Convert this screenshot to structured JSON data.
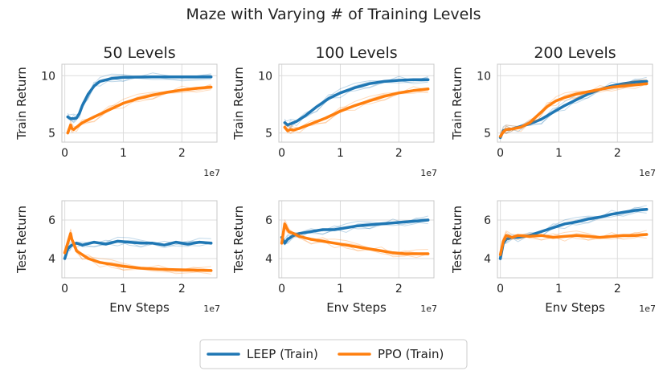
{
  "colors": {
    "leep": "#1f77b4",
    "ppo": "#ff7f0e",
    "grid": "#dcdcdc",
    "frame": "#c8c8c8"
  },
  "legend": {
    "leep": "LEEP (Train)",
    "ppo": "PPO (Train)"
  },
  "chart_data": {
    "type": "line",
    "title": "Maze with Varying # of Training Levels",
    "xlabel": "Env Steps",
    "x_exponent": "1e7",
    "xlim": [
      -0.05,
      2.6
    ],
    "xticks": [
      0,
      1,
      2
    ],
    "x_tick_labels": [
      "0",
      "1",
      "2"
    ],
    "series_names": [
      "LEEP (Train)",
      "PPO (Train)"
    ],
    "panels": [
      {
        "title": "50 Levels",
        "ylabel": "Train Return",
        "ylim": [
          4.2,
          11.0
        ],
        "yticks": [
          5,
          10
        ],
        "y_tick_labels": [
          "5",
          "10"
        ],
        "series": [
          {
            "name": "LEEP (Train)",
            "x": [
              0.05,
              0.1,
              0.15,
              0.2,
              0.25,
              0.3,
              0.4,
              0.5,
              0.6,
              0.8,
              1.0,
              1.2,
              1.5,
              2.0,
              2.5
            ],
            "y": [
              6.4,
              6.25,
              6.25,
              6.3,
              6.7,
              7.4,
              8.4,
              9.1,
              9.5,
              9.75,
              9.85,
              9.88,
              9.9,
              9.9,
              9.9
            ]
          },
          {
            "name": "PPO (Train)",
            "x": [
              0.05,
              0.1,
              0.12,
              0.15,
              0.2,
              0.3,
              0.5,
              0.75,
              1.0,
              1.25,
              1.5,
              1.75,
              2.0,
              2.25,
              2.5
            ],
            "y": [
              5.0,
              5.7,
              5.4,
              5.3,
              5.5,
              5.9,
              6.4,
              7.0,
              7.6,
              8.0,
              8.3,
              8.55,
              8.75,
              8.9,
              9.0
            ]
          }
        ]
      },
      {
        "title": "100 Levels",
        "ylabel": "Train Return",
        "ylim": [
          4.2,
          11.0
        ],
        "yticks": [
          5,
          10
        ],
        "y_tick_labels": [
          "5",
          "10"
        ],
        "series": [
          {
            "name": "LEEP (Train)",
            "x": [
              0.05,
              0.1,
              0.15,
              0.2,
              0.25,
              0.4,
              0.6,
              0.8,
              1.0,
              1.25,
              1.5,
              1.75,
              2.0,
              2.25,
              2.5
            ],
            "y": [
              5.9,
              5.7,
              5.8,
              5.9,
              6.0,
              6.5,
              7.3,
              8.0,
              8.5,
              8.95,
              9.3,
              9.5,
              9.6,
              9.65,
              9.65
            ]
          },
          {
            "name": "PPO (Train)",
            "x": [
              0.05,
              0.1,
              0.15,
              0.2,
              0.3,
              0.5,
              0.75,
              1.0,
              1.25,
              1.5,
              1.75,
              2.0,
              2.25,
              2.5
            ],
            "y": [
              5.5,
              5.2,
              5.3,
              5.25,
              5.4,
              5.8,
              6.3,
              6.9,
              7.4,
              7.8,
              8.2,
              8.5,
              8.7,
              8.85
            ]
          }
        ]
      },
      {
        "title": "200 Levels",
        "ylabel": "Train Return",
        "ylim": [
          4.2,
          11.0
        ],
        "yticks": [
          5,
          10
        ],
        "y_tick_labels": [
          "5",
          "10"
        ],
        "series": [
          {
            "name": "LEEP (Train)",
            "x": [
              0.0,
              0.05,
              0.1,
              0.2,
              0.3,
              0.5,
              0.7,
              0.9,
              1.1,
              1.3,
              1.5,
              1.7,
              1.9,
              2.1,
              2.3,
              2.5
            ],
            "y": [
              4.6,
              5.2,
              5.3,
              5.35,
              5.5,
              5.8,
              6.2,
              6.8,
              7.4,
              7.9,
              8.4,
              8.8,
              9.1,
              9.3,
              9.45,
              9.5
            ]
          },
          {
            "name": "PPO (Train)",
            "x": [
              0.0,
              0.05,
              0.1,
              0.2,
              0.35,
              0.5,
              0.65,
              0.8,
              0.95,
              1.1,
              1.3,
              1.5,
              1.7,
              1.9,
              2.1,
              2.3,
              2.5
            ],
            "y": [
              4.7,
              5.1,
              5.3,
              5.35,
              5.5,
              5.9,
              6.6,
              7.3,
              7.8,
              8.1,
              8.4,
              8.6,
              8.8,
              9.0,
              9.1,
              9.2,
              9.3
            ]
          }
        ]
      },
      {
        "title": "",
        "ylabel": "Test Return",
        "ylim": [
          3.0,
          7.0
        ],
        "yticks": [
          4,
          6
        ],
        "y_tick_labels": [
          "4",
          "6"
        ],
        "series": [
          {
            "name": "LEEP (Train)",
            "x": [
              0.0,
              0.05,
              0.08,
              0.12,
              0.2,
              0.3,
              0.5,
              0.7,
              0.9,
              1.1,
              1.3,
              1.5,
              1.7,
              1.9,
              2.1,
              2.3,
              2.5
            ],
            "y": [
              4.0,
              4.5,
              4.6,
              4.7,
              4.8,
              4.7,
              4.85,
              4.75,
              4.9,
              4.85,
              4.8,
              4.8,
              4.7,
              4.85,
              4.75,
              4.85,
              4.8
            ]
          },
          {
            "name": "PPO (Train)",
            "x": [
              0.0,
              0.05,
              0.1,
              0.12,
              0.15,
              0.2,
              0.3,
              0.4,
              0.6,
              0.8,
              1.0,
              1.3,
              1.6,
              1.9,
              2.2,
              2.5
            ],
            "y": [
              4.3,
              4.8,
              5.3,
              5.0,
              4.8,
              4.4,
              4.2,
              4.0,
              3.8,
              3.7,
              3.6,
              3.5,
              3.45,
              3.42,
              3.4,
              3.38
            ]
          }
        ]
      },
      {
        "title": "",
        "ylabel": "Test Return",
        "ylim": [
          3.0,
          7.0
        ],
        "yticks": [
          4,
          6
        ],
        "y_tick_labels": [
          "4",
          "6"
        ],
        "series": [
          {
            "name": "LEEP (Train)",
            "x": [
              0.0,
              0.05,
              0.1,
              0.2,
              0.3,
              0.5,
              0.7,
              0.9,
              1.1,
              1.3,
              1.5,
              1.7,
              1.9,
              2.1,
              2.3,
              2.5
            ],
            "y": [
              5.1,
              4.8,
              5.0,
              5.2,
              5.3,
              5.4,
              5.5,
              5.5,
              5.6,
              5.7,
              5.75,
              5.8,
              5.85,
              5.9,
              5.95,
              6.0
            ]
          },
          {
            "name": "PPO (Train)",
            "x": [
              0.0,
              0.05,
              0.08,
              0.12,
              0.2,
              0.3,
              0.5,
              0.7,
              0.9,
              1.1,
              1.3,
              1.5,
              1.7,
              1.9,
              2.1,
              2.3,
              2.5
            ],
            "y": [
              4.8,
              5.8,
              5.6,
              5.4,
              5.3,
              5.15,
              5.0,
              4.9,
              4.8,
              4.7,
              4.6,
              4.5,
              4.4,
              4.3,
              4.25,
              4.25,
              4.25
            ]
          }
        ]
      },
      {
        "title": "",
        "ylabel": "Test Return",
        "ylim": [
          3.0,
          7.0
        ],
        "yticks": [
          4,
          6
        ],
        "y_tick_labels": [
          "4",
          "6"
        ],
        "series": [
          {
            "name": "LEEP (Train)",
            "x": [
              0.0,
              0.05,
              0.1,
              0.2,
              0.3,
              0.5,
              0.7,
              0.9,
              1.1,
              1.3,
              1.5,
              1.7,
              1.9,
              2.1,
              2.3,
              2.5
            ],
            "y": [
              4.0,
              4.8,
              5.0,
              5.1,
              5.1,
              5.2,
              5.4,
              5.6,
              5.8,
              5.9,
              6.05,
              6.15,
              6.3,
              6.4,
              6.5,
              6.55
            ]
          },
          {
            "name": "PPO (Train)",
            "x": [
              0.0,
              0.05,
              0.1,
              0.2,
              0.3,
              0.5,
              0.7,
              0.9,
              1.1,
              1.3,
              1.5,
              1.7,
              1.9,
              2.1,
              2.3,
              2.5
            ],
            "y": [
              4.2,
              4.9,
              5.2,
              5.1,
              5.2,
              5.15,
              5.2,
              5.1,
              5.15,
              5.2,
              5.15,
              5.1,
              5.15,
              5.2,
              5.2,
              5.25
            ]
          }
        ]
      }
    ]
  }
}
